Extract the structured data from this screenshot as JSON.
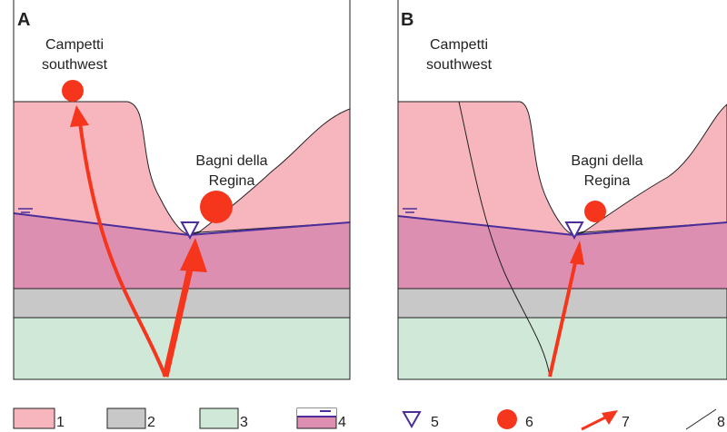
{
  "panels": [
    {
      "label": "A",
      "upper_site": [
        "Campetti",
        "southwest"
      ],
      "lower_site": [
        "Bagni della",
        "Regina"
      ]
    },
    {
      "label": "B",
      "upper_site": [
        "Campetti",
        "southwest"
      ],
      "lower_site": [
        "Bagni della",
        "Regina"
      ]
    }
  ],
  "legend": [
    "1",
    "2",
    "3",
    "4",
    "5",
    "6",
    "7",
    "8"
  ]
}
